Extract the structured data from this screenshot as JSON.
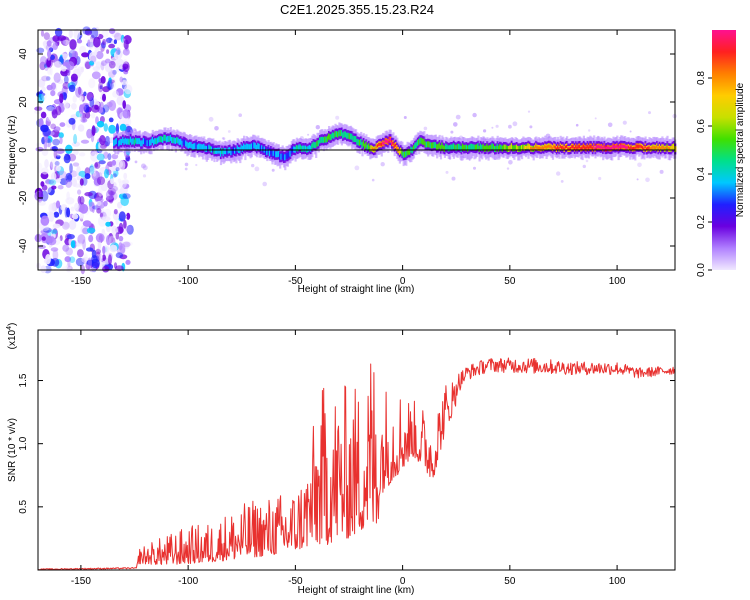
{
  "title": "C2E1.2025.355.15.23.R24",
  "colors": {
    "snr_line": "#e8312f",
    "center_line": "#000000",
    "axis": "#000000",
    "colormap": [
      "#f0e8ff",
      "#b080ff",
      "#6a00e0",
      "#2020ff",
      "#00c8ff",
      "#00e08a",
      "#40e000",
      "#c8e000",
      "#ffcc00",
      "#ff7f00",
      "#ff2020",
      "#ff1090"
    ]
  },
  "chart_data": [
    {
      "type": "heatmap",
      "title": "",
      "xlabel": "Height of straight line (km)",
      "ylabel": "Frequency (Hz)",
      "xlim": [
        -170,
        127
      ],
      "ylim": [
        -50,
        50
      ],
      "xticks": [
        -150,
        -100,
        -50,
        0,
        50,
        100
      ],
      "xtick_labels": [
        "-150",
        "-100",
        "-50",
        "0",
        "50",
        "100"
      ],
      "yticks": [
        -40,
        -20,
        0,
        20,
        40
      ],
      "ytick_labels": [
        "-40",
        "-20",
        "0",
        "20",
        "40"
      ],
      "reference_line_y": 0,
      "noise_region_x": [
        -170,
        -127
      ],
      "ridge": {
        "x": [
          -135,
          -128,
          -120,
          -110,
          -100,
          -92,
          -85,
          -78,
          -70,
          -62,
          -55,
          -50,
          -45,
          -40,
          -35,
          -30,
          -26,
          -22,
          -18,
          -14,
          -10,
          -6,
          -3,
          0,
          4,
          8,
          12,
          20,
          30,
          50,
          75,
          100,
          127
        ],
        "y": [
          3,
          4,
          3,
          5,
          2,
          1,
          -1,
          0,
          2,
          -1,
          -3,
          1,
          0,
          3,
          5,
          7,
          6,
          4,
          2,
          0,
          3,
          4,
          1,
          -2,
          0,
          4,
          2,
          1,
          1,
          1,
          1,
          1,
          1
        ],
        "amplitude": [
          0.35,
          0.4,
          0.35,
          0.4,
          0.35,
          0.35,
          0.38,
          0.35,
          0.35,
          0.3,
          0.3,
          0.38,
          0.4,
          0.45,
          0.5,
          0.5,
          0.48,
          0.45,
          0.5,
          0.65,
          0.8,
          0.85,
          0.7,
          0.5,
          0.5,
          0.55,
          0.5,
          0.5,
          0.5,
          0.55,
          0.75,
          0.85,
          0.6
        ]
      },
      "colorbar": {
        "label": "Normalized spectral amplitude",
        "range": [
          0,
          1
        ],
        "ticks": [
          0.0,
          0.2,
          0.4,
          0.6,
          0.8
        ],
        "tick_labels": [
          "0.0",
          "0.2",
          "0.4",
          "0.6",
          "0.8"
        ]
      }
    },
    {
      "type": "line",
      "title": "",
      "xlabel": "Height of straight line (km)",
      "ylabel": "SNR (10 * v/v)",
      "y_multiplier_label": "(x10",
      "y_multiplier_exponent": "4",
      "y_multiplier_close": ")",
      "xlim": [
        -170,
        127
      ],
      "ylim": [
        0,
        1.9
      ],
      "xticks": [
        -150,
        -100,
        -50,
        0,
        50,
        100
      ],
      "xtick_labels": [
        "-150",
        "-100",
        "-50",
        "0",
        "50",
        "100"
      ],
      "yticks": [
        0.5,
        1.0,
        1.5
      ],
      "ytick_labels": [
        "0.5",
        "1.0",
        "1.5"
      ],
      "envelope": {
        "x": [
          -170,
          -124,
          -123,
          -110,
          -100,
          -90,
          -80,
          -70,
          -60,
          -50,
          -45,
          -40,
          -35,
          -30,
          -25,
          -20,
          -16,
          -14,
          -12,
          -10,
          -5,
          0,
          5,
          10,
          14,
          20,
          25,
          30,
          40,
          60,
          80,
          100,
          110,
          127
        ],
        "base": [
          0.0,
          0.01,
          0.05,
          0.04,
          0.05,
          0.06,
          0.08,
          0.1,
          0.12,
          0.15,
          0.18,
          0.2,
          0.2,
          0.25,
          0.25,
          0.3,
          0.35,
          0.3,
          0.3,
          0.6,
          0.7,
          0.8,
          0.9,
          0.8,
          0.7,
          1.1,
          1.3,
          1.45,
          1.52,
          1.5,
          1.5,
          1.5,
          1.48,
          1.52
        ],
        "peak": [
          0.0,
          0.02,
          0.18,
          0.28,
          0.35,
          0.38,
          0.48,
          0.56,
          0.6,
          0.65,
          0.85,
          1.3,
          1.6,
          1.45,
          1.5,
          1.5,
          1.75,
          1.92,
          1.55,
          1.5,
          1.5,
          1.45,
          1.35,
          1.3,
          1.25,
          1.5,
          1.55,
          1.62,
          1.68,
          1.68,
          1.65,
          1.65,
          1.6,
          1.62
        ]
      }
    }
  ]
}
